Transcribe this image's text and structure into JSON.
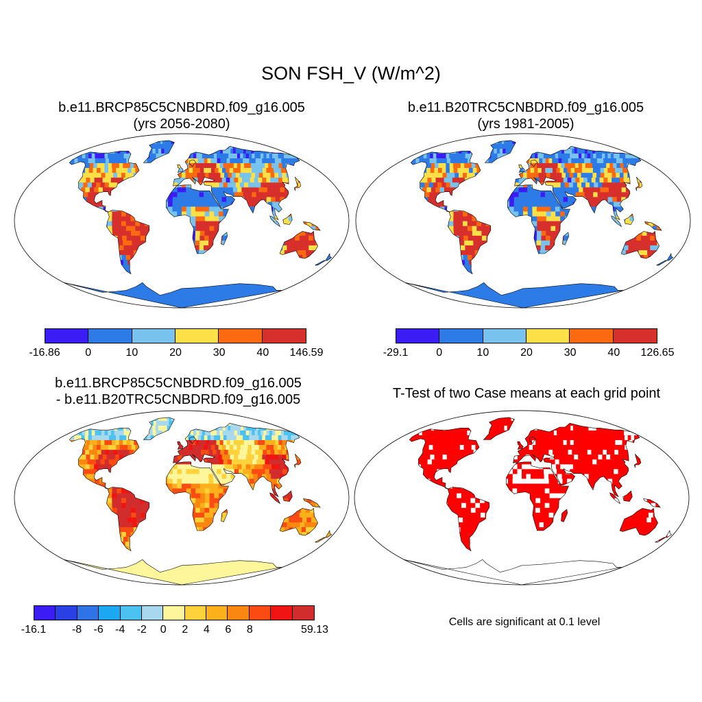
{
  "title": "SON FSH_V (W/m^2)",
  "panels": [
    {
      "title_line1": "b.e11.BRCP85C5CNBDRD.f09_g16.005",
      "title_line2": "(yrs 2056-2080)",
      "colorbar": {
        "colors": [
          "#3b1cf5",
          "#2c7be6",
          "#78c2ee",
          "#fde047",
          "#fb6a10",
          "#d7302c"
        ],
        "labels": [
          "-16.86",
          "0",
          "10",
          "20",
          "30",
          "40",
          "146.59"
        ]
      }
    },
    {
      "title_line1": "b.e11.B20TRC5CNBDRD.f09_g16.005",
      "title_line2": "(yrs 1981-2005)",
      "colorbar": {
        "colors": [
          "#3b1cf5",
          "#2c7be6",
          "#78c2ee",
          "#fde047",
          "#fb6a10",
          "#d7302c"
        ],
        "labels": [
          "-29.1",
          "0",
          "10",
          "20",
          "30",
          "40",
          "126.65"
        ]
      }
    },
    {
      "title_line1": "b.e11.BRCP85C5CNBDRD.f09_g16.005",
      "title_line2": "- b.e11.B20TRC5CNBDRD.f09_g16.005",
      "colorbar": {
        "colors": [
          "#3b1cf5",
          "#2840e4",
          "#2f74e6",
          "#1ba7f2",
          "#4cc2f3",
          "#a8d8ee",
          "#fef69a",
          "#fdd23a",
          "#fbb01c",
          "#fb8610",
          "#fb4b12",
          "#f01512",
          "#d22d2d"
        ],
        "labels": [
          "-16.1",
          "-8",
          "-6",
          "-4",
          "-2",
          "0",
          "2",
          "4",
          "6",
          "8",
          "59.13"
        ]
      }
    },
    {
      "title_line1": "T-Test of two Case means at each grid point",
      "note": "Cells are significant at 0.1 level"
    }
  ]
}
